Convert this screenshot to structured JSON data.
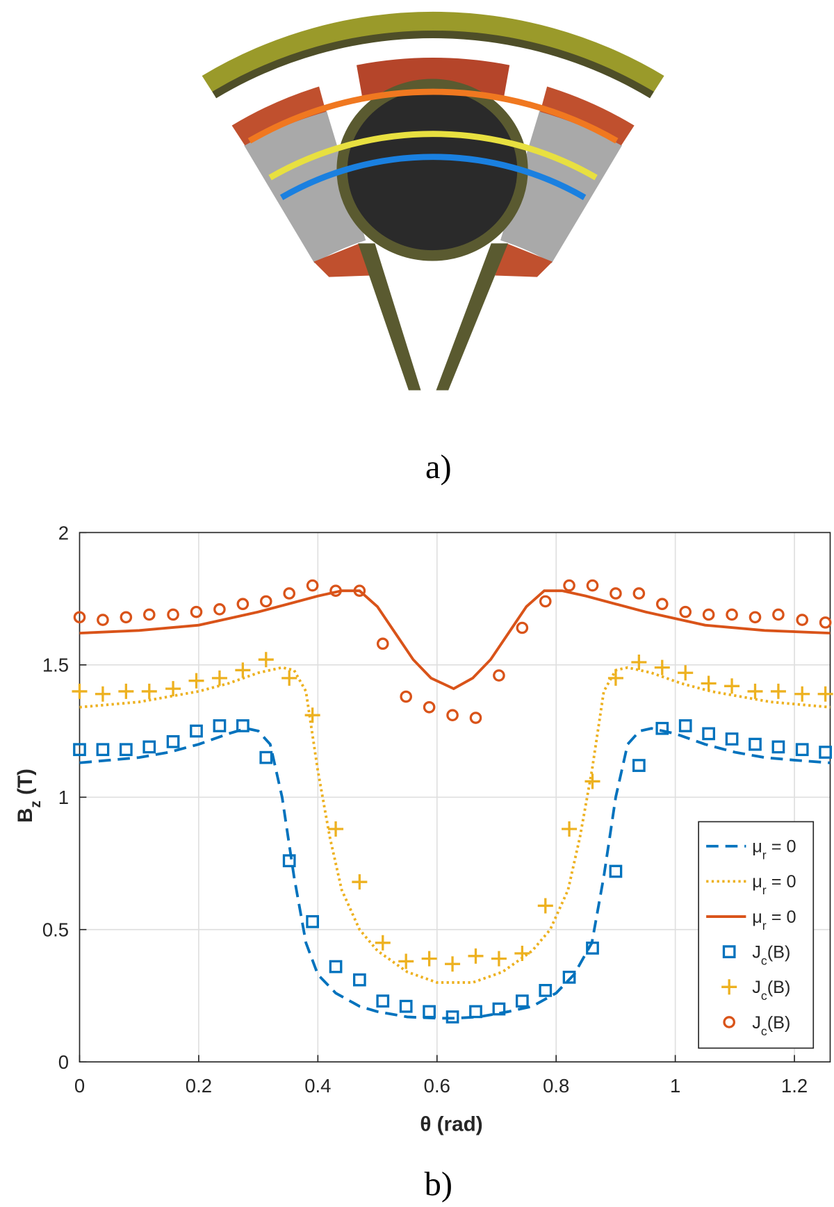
{
  "figure_a": {
    "caption": "a)"
  },
  "chart_data": {
    "type": "line",
    "caption": "b)",
    "xlabel": "θ (rad)",
    "ylabel": "Bz (T)",
    "xlim": [
      0,
      1.26
    ],
    "ylim": [
      0,
      2
    ],
    "xticks": [
      0,
      0.2,
      0.4,
      0.6,
      0.8,
      1,
      1.2
    ],
    "yticks": [
      0,
      0.5,
      1,
      1.5,
      2
    ],
    "grid": true,
    "legend": "lower right",
    "series": [
      {
        "name": "μr = 0",
        "color": "#0072bd",
        "style": "dashed",
        "x": [
          0,
          0.05,
          0.1,
          0.15,
          0.2,
          0.25,
          0.28,
          0.3,
          0.32,
          0.34,
          0.36,
          0.38,
          0.4,
          0.43,
          0.47,
          0.5,
          0.55,
          0.6,
          0.63,
          0.67,
          0.72,
          0.76,
          0.8,
          0.83,
          0.86,
          0.88,
          0.9,
          0.92,
          0.94,
          0.96,
          1.0,
          1.05,
          1.1,
          1.15,
          1.2,
          1.26
        ],
        "values": [
          1.13,
          1.14,
          1.15,
          1.17,
          1.2,
          1.24,
          1.26,
          1.25,
          1.2,
          1.0,
          0.7,
          0.45,
          0.33,
          0.26,
          0.21,
          0.19,
          0.17,
          0.165,
          0.165,
          0.17,
          0.19,
          0.21,
          0.26,
          0.33,
          0.45,
          0.7,
          1.0,
          1.2,
          1.25,
          1.26,
          1.24,
          1.2,
          1.17,
          1.15,
          1.14,
          1.13
        ]
      },
      {
        "name": "μr = 0",
        "color": "#edb120",
        "style": "dotted",
        "x": [
          0,
          0.05,
          0.1,
          0.15,
          0.2,
          0.25,
          0.3,
          0.34,
          0.36,
          0.38,
          0.4,
          0.42,
          0.44,
          0.47,
          0.5,
          0.55,
          0.6,
          0.63,
          0.66,
          0.71,
          0.76,
          0.79,
          0.82,
          0.84,
          0.86,
          0.88,
          0.9,
          0.92,
          0.96,
          1.01,
          1.06,
          1.11,
          1.16,
          1.21,
          1.26
        ],
        "values": [
          1.34,
          1.35,
          1.36,
          1.38,
          1.4,
          1.43,
          1.47,
          1.49,
          1.48,
          1.4,
          1.1,
          0.85,
          0.65,
          0.5,
          0.42,
          0.34,
          0.3,
          0.3,
          0.3,
          0.34,
          0.42,
          0.5,
          0.65,
          0.85,
          1.1,
          1.4,
          1.48,
          1.49,
          1.47,
          1.43,
          1.4,
          1.38,
          1.36,
          1.35,
          1.34
        ]
      },
      {
        "name": "μr = 0",
        "color": "#d95319",
        "style": "solid",
        "x": [
          0,
          0.1,
          0.2,
          0.3,
          0.35,
          0.4,
          0.44,
          0.47,
          0.5,
          0.53,
          0.56,
          0.59,
          0.628,
          0.66,
          0.69,
          0.72,
          0.75,
          0.78,
          0.81,
          0.85,
          0.9,
          0.95,
          1.05,
          1.15,
          1.26
        ],
        "values": [
          1.62,
          1.63,
          1.65,
          1.7,
          1.73,
          1.76,
          1.78,
          1.78,
          1.72,
          1.62,
          1.52,
          1.45,
          1.41,
          1.45,
          1.52,
          1.62,
          1.72,
          1.78,
          1.78,
          1.76,
          1.73,
          1.7,
          1.65,
          1.63,
          1.62
        ]
      },
      {
        "name": "Jc(B)",
        "color": "#0072bd",
        "marker": "square",
        "x": [
          0,
          0.039,
          0.078,
          0.117,
          0.157,
          0.196,
          0.235,
          0.274,
          0.313,
          0.352,
          0.391,
          0.43,
          0.47,
          0.509,
          0.548,
          0.587,
          0.626,
          0.665,
          0.704,
          0.743,
          0.782,
          0.822,
          0.861,
          0.9,
          0.939,
          0.978,
          1.017,
          1.056,
          1.095,
          1.134,
          1.173,
          1.213,
          1.252
        ],
        "values": [
          1.18,
          1.18,
          1.18,
          1.19,
          1.21,
          1.25,
          1.27,
          1.27,
          1.15,
          0.76,
          0.53,
          0.36,
          0.31,
          0.23,
          0.21,
          0.19,
          0.17,
          0.19,
          0.2,
          0.23,
          0.27,
          0.32,
          0.43,
          0.72,
          1.12,
          1.26,
          1.27,
          1.24,
          1.22,
          1.2,
          1.19,
          1.18,
          1.17
        ]
      },
      {
        "name": "Jc(B)",
        "color": "#edb120",
        "marker": "plus",
        "x": [
          0,
          0.039,
          0.078,
          0.117,
          0.157,
          0.196,
          0.235,
          0.274,
          0.313,
          0.352,
          0.391,
          0.43,
          0.47,
          0.509,
          0.548,
          0.587,
          0.626,
          0.665,
          0.704,
          0.743,
          0.782,
          0.822,
          0.861,
          0.9,
          0.939,
          0.978,
          1.017,
          1.056,
          1.095,
          1.134,
          1.173,
          1.213,
          1.252
        ],
        "values": [
          1.4,
          1.39,
          1.4,
          1.4,
          1.41,
          1.44,
          1.45,
          1.48,
          1.52,
          1.45,
          1.31,
          0.88,
          0.68,
          0.45,
          0.38,
          0.39,
          0.37,
          0.4,
          0.39,
          0.41,
          0.59,
          0.88,
          1.06,
          1.45,
          1.51,
          1.49,
          1.47,
          1.43,
          1.42,
          1.4,
          1.4,
          1.39,
          1.39
        ]
      },
      {
        "name": "Jc(B)",
        "color": "#d95319",
        "marker": "circle",
        "x": [
          0,
          0.039,
          0.078,
          0.117,
          0.157,
          0.196,
          0.235,
          0.274,
          0.313,
          0.352,
          0.391,
          0.43,
          0.47,
          0.509,
          0.548,
          0.587,
          0.626,
          0.665,
          0.704,
          0.743,
          0.782,
          0.822,
          0.861,
          0.9,
          0.939,
          0.978,
          1.017,
          1.056,
          1.095,
          1.134,
          1.173,
          1.213,
          1.252
        ],
        "values": [
          1.68,
          1.67,
          1.68,
          1.69,
          1.69,
          1.7,
          1.71,
          1.73,
          1.74,
          1.77,
          1.8,
          1.78,
          1.78,
          1.58,
          1.38,
          1.34,
          1.31,
          1.3,
          1.46,
          1.64,
          1.74,
          1.8,
          1.8,
          1.77,
          1.77,
          1.73,
          1.7,
          1.69,
          1.69,
          1.68,
          1.69,
          1.67,
          1.66
        ]
      }
    ]
  }
}
